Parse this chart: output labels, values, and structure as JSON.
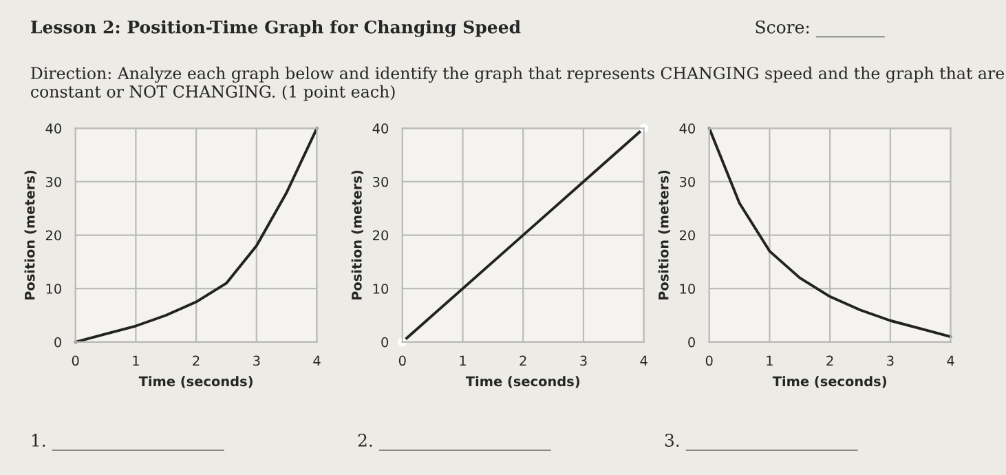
{
  "chart_data": [
    {
      "type": "line",
      "title": "Lesson 2: Position-Time Graph for Changing Speed",
      "subtitle": "Direction: Analyze each graph below and identify the graph that represents CHANGING speed and the graph that are constant or NOT CHANGING. (1 point each)",
      "annotations": [
        "Score: ________",
        "1. ____________________"
      ],
      "xlabel": "Time (seconds)",
      "ylabel": "Position (meters)",
      "x": [
        0,
        0.5,
        1,
        1.5,
        2,
        2.5,
        3,
        3.5,
        4
      ],
      "series": [
        {
          "color": "#222222",
          "values": [
            0,
            1.5,
            3,
            5,
            7.5,
            11,
            18,
            28,
            40
          ]
        }
      ],
      "xlim": [
        0,
        4
      ],
      "ylim": [
        0,
        40
      ],
      "xticks": [
        0,
        1,
        2,
        3,
        4
      ],
      "yticks": [
        0,
        10,
        20,
        30,
        40
      ],
      "grid": true,
      "marker": "none",
      "line_style": "solid"
    },
    {
      "type": "line",
      "annotations": [
        "2. ____________________"
      ],
      "xlabel": "Time (seconds)",
      "ylabel": "Position (meters)",
      "x": [
        0,
        4
      ],
      "series": [
        {
          "color": "#222222",
          "values": [
            0,
            40
          ]
        }
      ],
      "xlim": [
        0,
        4
      ],
      "ylim": [
        0,
        40
      ],
      "xticks": [
        0,
        1,
        2,
        3,
        4
      ],
      "yticks": [
        0,
        10,
        20,
        30,
        40
      ],
      "grid": true,
      "marker": "circle",
      "line_style": "solid"
    },
    {
      "type": "line",
      "annotations": [
        "3. ____________________"
      ],
      "xlabel": "Time (seconds)",
      "ylabel": "Position (meters)",
      "x": [
        0,
        0.5,
        1,
        1.5,
        2,
        2.5,
        3,
        3.5,
        4
      ],
      "series": [
        {
          "color": "#222222",
          "values": [
            40,
            26,
            17,
            12,
            8.5,
            6,
            4,
            2.5,
            1
          ]
        }
      ],
      "xlim": [
        0,
        4
      ],
      "ylim": [
        0,
        40
      ],
      "xticks": [
        0,
        1,
        2,
        3,
        4
      ],
      "yticks": [
        0,
        10,
        20,
        30,
        40
      ],
      "grid": true,
      "marker": "none",
      "line_style": "solid"
    }
  ]
}
